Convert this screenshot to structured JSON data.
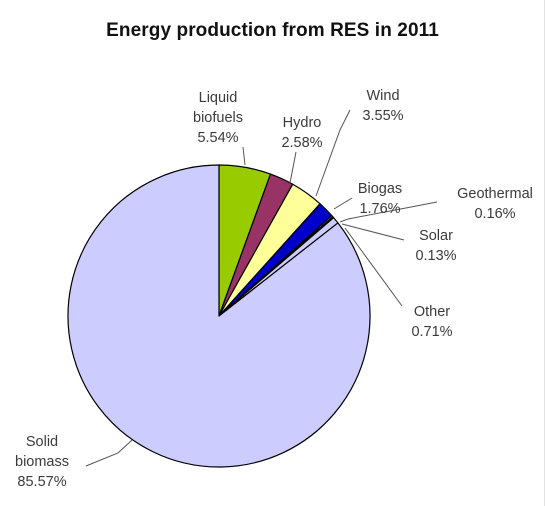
{
  "chart_data": {
    "type": "pie",
    "title": "Energy production from RES in 2011",
    "slices": [
      {
        "name": "Liquid biofuels",
        "label_lines": [
          "Liquid",
          "biofuels"
        ],
        "value": 5.54,
        "value_label": "5.54%",
        "color": "#99cc00"
      },
      {
        "name": "Hydro",
        "label_lines": [
          "Hydro"
        ],
        "value": 2.58,
        "value_label": "2.58%",
        "color": "#993366"
      },
      {
        "name": "Wind",
        "label_lines": [
          "Wind"
        ],
        "value": 3.55,
        "value_label": "3.55%",
        "color": "#ffff99"
      },
      {
        "name": "Biogas",
        "label_lines": [
          "Biogas"
        ],
        "value": 1.76,
        "value_label": "1.76%",
        "color": "#0000cc"
      },
      {
        "name": "Geothermal",
        "label_lines": [
          "Geothermal"
        ],
        "value": 0.16,
        "value_label": "0.16%",
        "color": "#ccffff"
      },
      {
        "name": "Solar",
        "label_lines": [
          "Solar"
        ],
        "value": 0.13,
        "value_label": "0.13%",
        "color": "#ffcc99"
      },
      {
        "name": "Other",
        "label_lines": [
          "Other"
        ],
        "value": 0.71,
        "value_label": "0.71%",
        "color": "#ccccff"
      },
      {
        "name": "Solid biomass",
        "label_lines": [
          "Solid",
          "biomass"
        ],
        "value": 85.57,
        "value_label": "85.57%",
        "color": "#ccccff"
      }
    ],
    "legend": "none",
    "start_angle": "12 o'clock",
    "direction": "clockwise"
  }
}
